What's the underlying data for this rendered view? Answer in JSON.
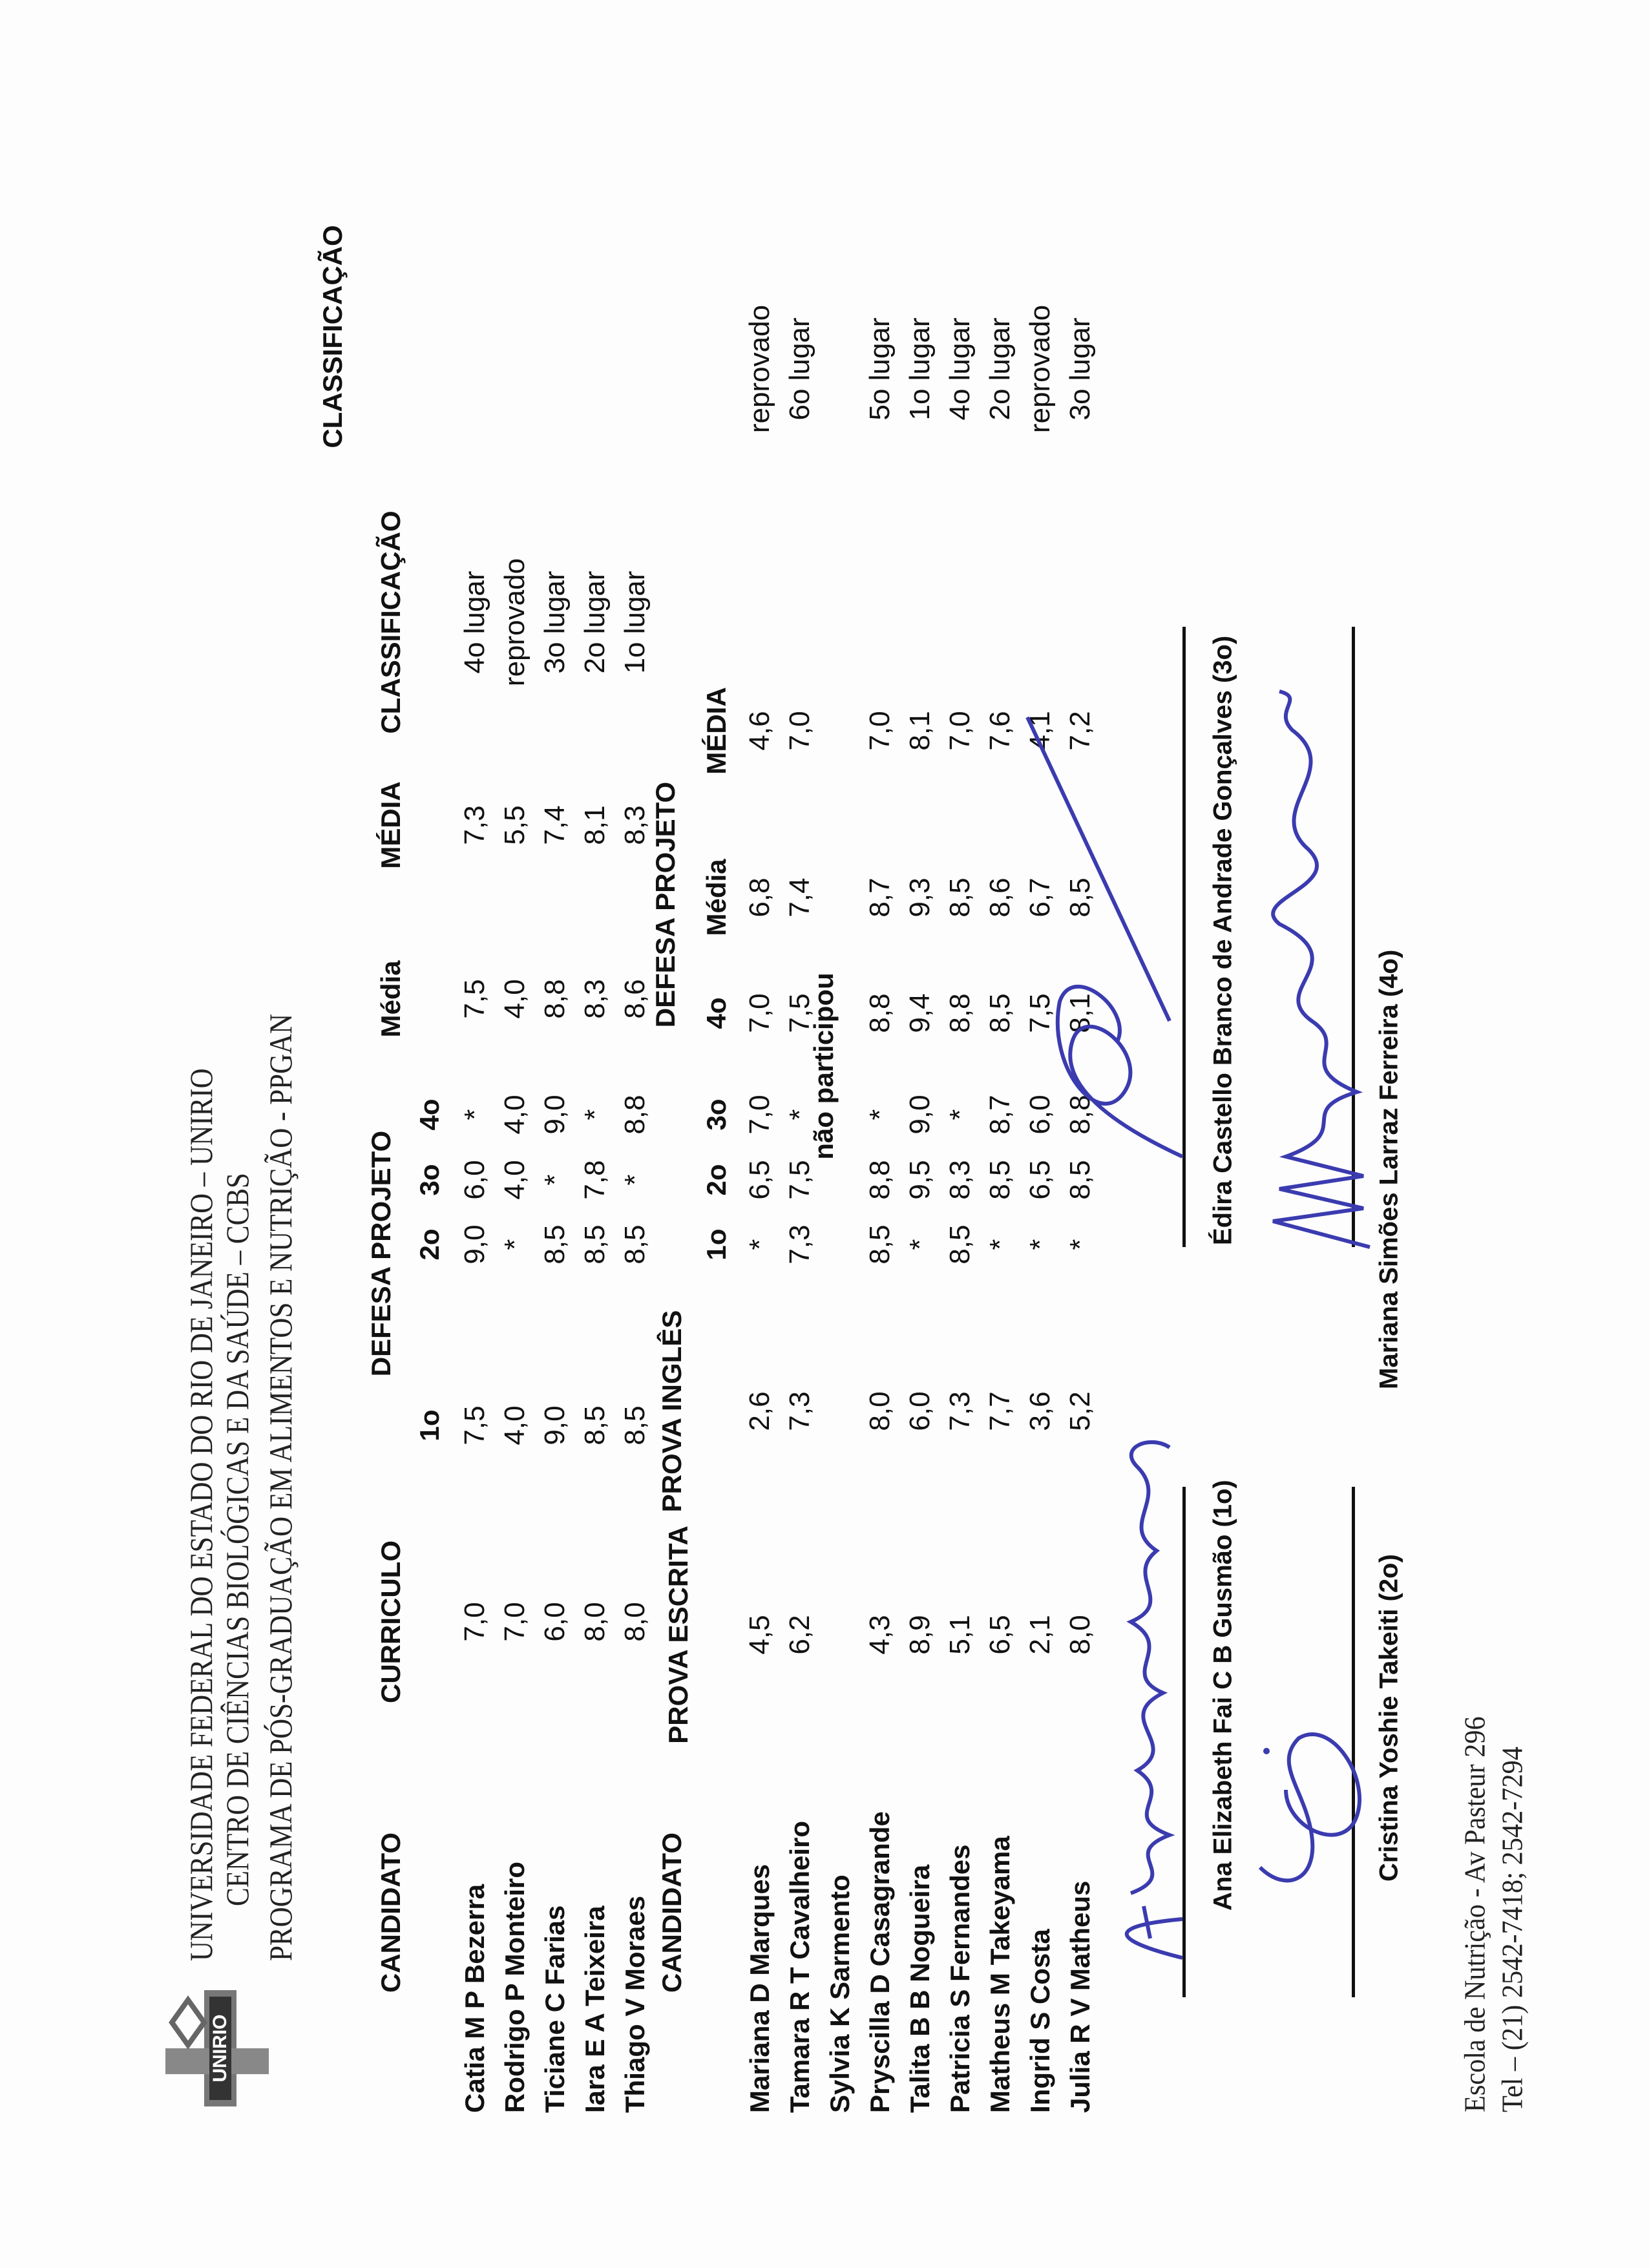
{
  "header": {
    "logo_text": "UNIRIO",
    "line1": "UNIVERSIDADE FEDERAL DO ESTADO DO RIO DE JANEIRO – UNIRIO",
    "line2": "CENTRO DE CIÊNCIAS BIOLÓGICAS E DA SAÚDE – CCBS",
    "line3": "PROGRAMA DE PÓS-GRADUAÇÃO EM ALIMENTOS E NUTRIÇÃO - PPGAN"
  },
  "table1": {
    "headers": {
      "candidato": "CANDIDATO",
      "curriculo": "CURRICULO",
      "defesa": "DEFESA PROJETO",
      "d1": "1o",
      "d2": "2o",
      "d3": "3o",
      "d4": "4o",
      "media_defesa": "Média",
      "media": "MÉDIA",
      "classificacao": "CLASSIFICAÇÃO"
    },
    "rows": [
      {
        "name": "Catia M P Bezerra",
        "curriculo": "7,0",
        "d1": "7,5",
        "d2": "9,0",
        "d3": "6,0",
        "d4": "*",
        "media_defesa": "7,5",
        "media": "7,3",
        "classificacao": "4o lugar"
      },
      {
        "name": "Rodrigo P Monteiro",
        "curriculo": "7,0",
        "d1": "4,0",
        "d2": "*",
        "d3": "4,0",
        "d4": "4,0",
        "media_defesa": "4,0",
        "media": "5,5",
        "classificacao": "reprovado"
      },
      {
        "name": "Ticiane C Farias",
        "curriculo": "6,0",
        "d1": "9,0",
        "d2": "8,5",
        "d3": "*",
        "d4": "9,0",
        "media_defesa": "8,8",
        "media": "7,4",
        "classificacao": "3o lugar"
      },
      {
        "name": "Iara E A Teixeira",
        "curriculo": "8,0",
        "d1": "8,5",
        "d2": "8,5",
        "d3": "7,8",
        "d4": "*",
        "media_defesa": "8,3",
        "media": "8,1",
        "classificacao": "2o lugar"
      },
      {
        "name": "Thiago V Moraes",
        "curriculo": "8,0",
        "d1": "8,5",
        "d2": "8,5",
        "d3": "*",
        "d4": "8,8",
        "media_defesa": "8,6",
        "media": "8,3",
        "classificacao": "1o lugar"
      }
    ]
  },
  "table2": {
    "headers": {
      "candidato": "CANDIDATO",
      "escrita": "PROVA ESCRITA",
      "ingles": "PROVA INGLÊS",
      "defesa": "DEFESA PROJETO",
      "d1": "1o",
      "d2": "2o",
      "d3": "3o",
      "d4": "4o",
      "media_defesa": "Média",
      "media": "MÉDIA",
      "classificacao": "CLASSIFICAÇÃO"
    },
    "rows": [
      {
        "name": "Mariana D Marques",
        "escrita": "4,5",
        "ingles": "2,6",
        "d1": "*",
        "d2": "6,5",
        "d3": "7,0",
        "d4": "7,0",
        "media_defesa": "6,8",
        "media": "4,6",
        "classificacao": "reprovado"
      },
      {
        "name": "Tamara R T Cavalheiro",
        "escrita": "6,2",
        "ingles": "7,3",
        "d1": "7,3",
        "d2": "7,5",
        "d3": "*",
        "d4": "7,5",
        "media_defesa": "7,4",
        "media": "7,0",
        "classificacao": "6o lugar"
      },
      {
        "name": "Sylvia K Sarmento",
        "note": "não participou"
      },
      {
        "name": "Pryscilla D Casagrande",
        "escrita": "4,3",
        "ingles": "8,0",
        "d1": "8,5",
        "d2": "8,8",
        "d3": "*",
        "d4": "8,8",
        "media_defesa": "8,7",
        "media": "7,0",
        "classificacao": "5o lugar"
      },
      {
        "name": "Talita B B Nogueira",
        "escrita": "8,9",
        "ingles": "6,0",
        "d1": "*",
        "d2": "9,5",
        "d3": "9,0",
        "d4": "9,4",
        "media_defesa": "9,3",
        "media": "8,1",
        "classificacao": "1o lugar"
      },
      {
        "name": "Patricia S Fernandes",
        "escrita": "5,1",
        "ingles": "7,3",
        "d1": "8,5",
        "d2": "8,3",
        "d3": "*",
        "d4": "8,8",
        "media_defesa": "8,5",
        "media": "7,0",
        "classificacao": "4o lugar"
      },
      {
        "name": "Matheus M Takeyama",
        "escrita": "6,5",
        "ingles": "7,7",
        "d1": "*",
        "d2": "8,5",
        "d3": "8,7",
        "d4": "8,5",
        "media_defesa": "8,6",
        "media": "7,6",
        "classificacao": "2o lugar"
      },
      {
        "name": "Ingrid S Costa",
        "escrita": "2,1",
        "ingles": "3,6",
        "d1": "*",
        "d2": "6,5",
        "d3": "6,0",
        "d4": "7,5",
        "media_defesa": "6,7",
        "media": "4,1",
        "classificacao": "reprovado"
      },
      {
        "name": "Julia R V Matheus",
        "escrita": "8,0",
        "ingles": "5,2",
        "d1": "*",
        "d2": "8,5",
        "d3": "8,8",
        "d4": "8,1",
        "media_defesa": "8,5",
        "media": "7,2",
        "classificacao": "3o lugar"
      }
    ]
  },
  "signatures": [
    {
      "name": "Ana Elizabeth Fai C B Gusmão (1o)"
    },
    {
      "name": "Édira Castello Branco de Andrade Gonçalves (3o)"
    },
    {
      "name": "Cristina Yoshie Takeiti (2o)"
    },
    {
      "name": "Mariana Simões Larraz Ferreira (4o)"
    }
  ],
  "footer": {
    "address": "Escola de Nutrição - Av Pasteur 296",
    "phone": "Tel – (21) 2542-7418; 2542-7294"
  },
  "colors": {
    "ink": "#111111",
    "signature_ink": "#3b3bb0"
  }
}
